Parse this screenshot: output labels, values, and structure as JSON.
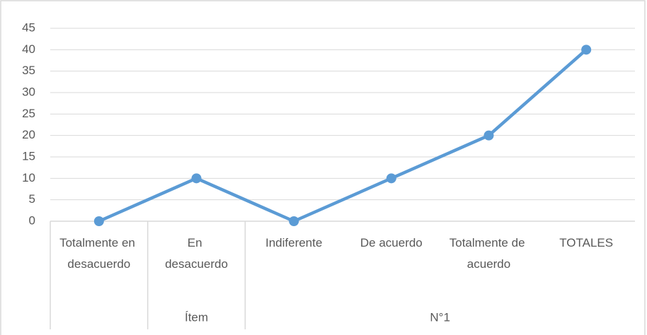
{
  "chart_data": {
    "type": "line",
    "categories": [
      "Totalmente en desacuerdo",
      "En desacuerdo",
      "Indiferente",
      "De acuerdo",
      "Totalmente de acuerdo",
      "TOTALES"
    ],
    "x_groups": [
      "Ítem",
      "N°1"
    ],
    "values": [
      0,
      10,
      0,
      10,
      20,
      40
    ],
    "color": "#5b9bd5",
    "ylim": [
      0,
      45
    ],
    "yticks": [
      0,
      5,
      10,
      15,
      20,
      25,
      30,
      35,
      40,
      45
    ],
    "grid": true
  }
}
